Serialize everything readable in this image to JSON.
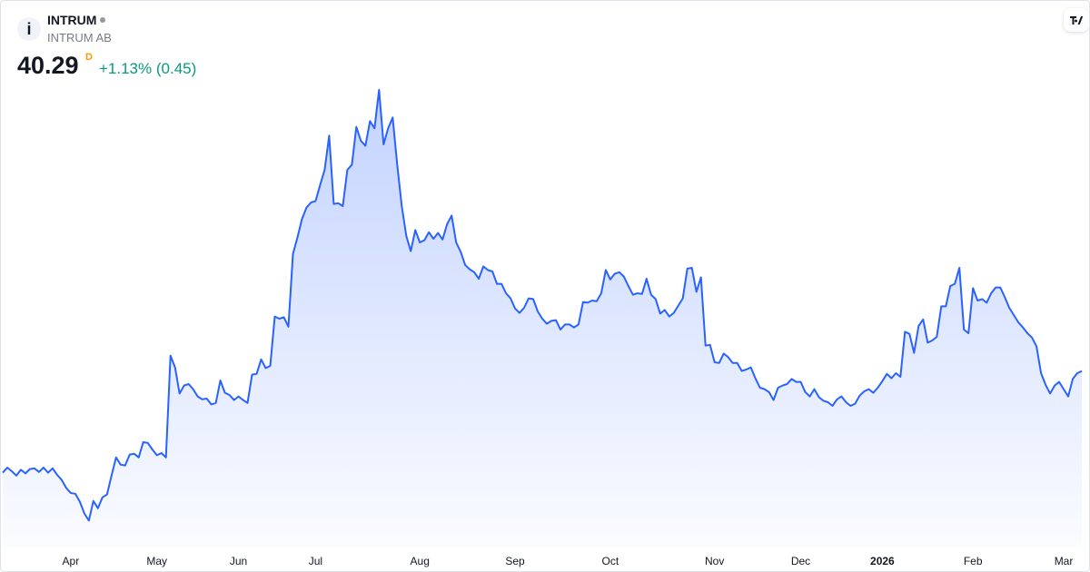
{
  "header": {
    "symbol": "INTRUM",
    "name": "INTRUM AB",
    "price": 40.29,
    "price_flag": "D",
    "change": "+1.13% (0.45)"
  },
  "chart_data": {
    "type": "area",
    "color": "#2962ff",
    "values": [
      26.3,
      27.0,
      26.5,
      25.9,
      26.7,
      26.2,
      26.8,
      26.9,
      26.4,
      27.0,
      26.3,
      26.9,
      26.0,
      25.3,
      24.2,
      23.5,
      23.4,
      22.3,
      20.7,
      19.7,
      22.4,
      21.4,
      22.9,
      23.3,
      25.9,
      28.4,
      27.4,
      27.3,
      28.8,
      28.9,
      28.4,
      30.5,
      30.4,
      29.5,
      28.7,
      29.0,
      28.4,
      42.4,
      40.8,
      37.2,
      38.3,
      38.5,
      37.8,
      36.8,
      36.4,
      36.5,
      35.7,
      35.9,
      39.0,
      37.3,
      37.0,
      36.3,
      36.8,
      36.3,
      35.9,
      39.8,
      39.9,
      41.9,
      40.7,
      41.0,
      47.8,
      47.5,
      47.7,
      46.4,
      56.4,
      58.7,
      61.2,
      62.8,
      63.5,
      63.7,
      65.9,
      68.0,
      72.7,
      63.3,
      63.4,
      63.0,
      68.0,
      68.7,
      73.9,
      72.0,
      71.3,
      74.7,
      73.7,
      79.0,
      71.5,
      73.7,
      75.2,
      68.7,
      63.0,
      58.9,
      56.8,
      59.7,
      58.0,
      58.3,
      59.4,
      58.5,
      59.3,
      58.4,
      60.5,
      61.7,
      58.0,
      56.7,
      54.9,
      54.3,
      53.9,
      53.0,
      54.7,
      54.2,
      54.0,
      52.3,
      52.3,
      51.0,
      50.3,
      48.9,
      48.3,
      49.0,
      50.3,
      50.2,
      48.5,
      47.5,
      46.8,
      47.2,
      47.3,
      46.0,
      46.7,
      46.7,
      46.3,
      46.7,
      49.8,
      49.7,
      50.0,
      49.9,
      51.0,
      54.2,
      52.9,
      53.7,
      53.9,
      53.3,
      52.0,
      50.8,
      51.0,
      50.9,
      53.0,
      50.8,
      50.2,
      48.2,
      48.7,
      47.8,
      48.3,
      49.3,
      50.3,
      54.4,
      54.5,
      51.2,
      53.2,
      43.8,
      43.9,
      41.5,
      41.4,
      42.7,
      42.2,
      41.4,
      41.4,
      40.3,
      40.5,
      40.8,
      39.3,
      38.0,
      37.8,
      37.4,
      36.3,
      38.0,
      38.3,
      38.5,
      39.2,
      38.8,
      38.8,
      37.4,
      36.8,
      37.8,
      36.7,
      36.2,
      36.0,
      35.5,
      36.4,
      36.8,
      36.0,
      35.5,
      35.8,
      36.9,
      37.5,
      37.8,
      37.3,
      38.0,
      38.9,
      39.9,
      39.3,
      40.0,
      39.5,
      45.7,
      45.4,
      42.8,
      46.5,
      47.4,
      44.2,
      44.5,
      45.0,
      49.2,
      49.2,
      52.0,
      52.3,
      54.5,
      46.0,
      45.5,
      51.7,
      50.0,
      50.2,
      49.7,
      51.0,
      51.8,
      51.8,
      50.5,
      49.0,
      48.0,
      47.0,
      46.3,
      45.5,
      44.9,
      43.7,
      40.0,
      38.4,
      37.2,
      38.3,
      38.8,
      37.8,
      36.8,
      39.2,
      40.0,
      40.29
    ],
    "ylim": [
      16,
      81
    ],
    "xticks": [
      {
        "value": 15,
        "label": "Apr"
      },
      {
        "value": 34,
        "label": "May"
      },
      {
        "value": 52,
        "label": "Jun"
      },
      {
        "value": 69,
        "label": "Jul"
      },
      {
        "value": 92,
        "label": "Aug"
      },
      {
        "value": 113,
        "label": "Sep"
      },
      {
        "value": 134,
        "label": "Oct"
      },
      {
        "value": 157,
        "label": "Nov"
      },
      {
        "value": 176,
        "label": "Dec"
      },
      {
        "value": 194,
        "label": "2026"
      },
      {
        "value": 214,
        "label": "Feb"
      },
      {
        "value": 234,
        "label": "Mar"
      }
    ]
  }
}
